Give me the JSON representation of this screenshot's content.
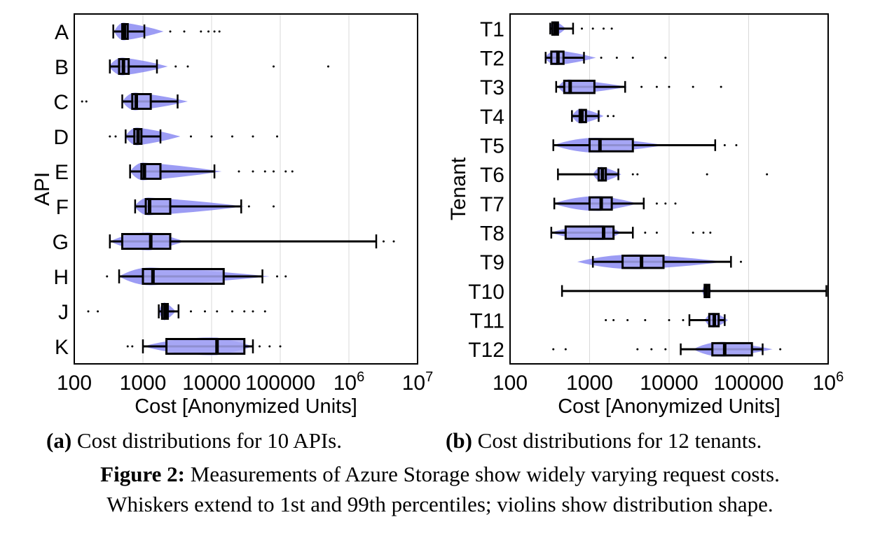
{
  "colors": {
    "violin": "#7b7bf0",
    "box_fill": "#a8a8f5",
    "line": "#000000",
    "grid": "#d9d9d9"
  },
  "chart_data": [
    {
      "type": "box-violin",
      "orientation": "horizontal",
      "xlabel": "Cost [Anonymized Units]",
      "ylabel": "API",
      "xscale": "log",
      "xlim": [
        100,
        10000000
      ],
      "xticks": [
        "100",
        "1000",
        "10000",
        "100000",
        "10^6",
        "10^7"
      ],
      "grid": "vertical",
      "categories": [
        "A",
        "B",
        "C",
        "D",
        "E",
        "F",
        "G",
        "H",
        "J",
        "K"
      ],
      "series": [
        {
          "label": "A",
          "p1": 370,
          "q1": 500,
          "median": 540,
          "q3": 600,
          "p99": 1050,
          "violin_min": 380,
          "violin_max": 2000,
          "outliers": [
            2500,
            4000,
            7000,
            9000,
            11000,
            13000
          ]
        },
        {
          "label": "B",
          "p1": 330,
          "q1": 450,
          "median": 520,
          "q3": 620,
          "p99": 1600,
          "violin_min": 320,
          "violin_max": 2300,
          "outliers": [
            3000,
            4500,
            80000,
            500000
          ]
        },
        {
          "label": "C",
          "p1": 500,
          "q1": 700,
          "median": 800,
          "q3": 1300,
          "p99": 3200,
          "violin_min": 500,
          "violin_max": 4500,
          "outliers": [
            130,
            150
          ]
        },
        {
          "label": "D",
          "p1": 560,
          "q1": 750,
          "median": 850,
          "q3": 950,
          "p99": 1800,
          "violin_min": 550,
          "violin_max": 3500,
          "outliers": [
            330,
            400,
            5000,
            10000,
            20000,
            40000,
            90000
          ]
        },
        {
          "label": "E",
          "p1": 650,
          "q1": 950,
          "median": 1050,
          "q3": 1800,
          "p99": 11000,
          "violin_min": 650,
          "violin_max": 14000,
          "outliers": [
            25000,
            40000,
            60000,
            80000,
            120000,
            150000
          ]
        },
        {
          "label": "F",
          "p1": 770,
          "q1": 1100,
          "median": 1250,
          "q3": 2500,
          "p99": 27000,
          "violin_min": 750,
          "violin_max": 30000,
          "outliers": [
            35000,
            80000
          ]
        },
        {
          "label": "G",
          "p1": 330,
          "q1": 500,
          "median": 1300,
          "q3": 2500,
          "p99": 2500000,
          "violin_min": 330,
          "violin_max": 4000,
          "outliers": [
            8000,
            15000,
            30000,
            70000,
            3200000,
            4500000
          ]
        },
        {
          "label": "H",
          "p1": 450,
          "q1": 1000,
          "median": 1400,
          "q3": 15000,
          "p99": 55000,
          "violin_min": 450,
          "violin_max": 70000,
          "outliers": [
            300,
            90000,
            120000
          ]
        },
        {
          "label": "J",
          "p1": 1700,
          "q1": 1900,
          "median": 2100,
          "q3": 2300,
          "p99": 3300,
          "violin_min": 1700,
          "violin_max": 3000,
          "outliers": [
            160,
            220,
            5000,
            8000,
            12000,
            20000,
            30000,
            40000,
            60000
          ]
        },
        {
          "label": "K",
          "p1": 1000,
          "q1": 2200,
          "median": 12000,
          "q3": 30000,
          "p99": 40000,
          "violin_min": 1000,
          "violin_max": 40000,
          "outliers": [
            600,
            700,
            50000,
            70000,
            100000
          ]
        }
      ]
    },
    {
      "type": "box-violin",
      "orientation": "horizontal",
      "xlabel": "Cost [Anonymized Units]",
      "ylabel": "Tenant",
      "xscale": "log",
      "xlim": [
        100,
        1000000
      ],
      "xticks": [
        "100",
        "1000",
        "10000",
        "100000",
        "10^6"
      ],
      "grid": "vertical",
      "categories": [
        "T1",
        "T2",
        "T3",
        "T4",
        "T5",
        "T6",
        "T7",
        "T8",
        "T9",
        "T10",
        "T11",
        "T12"
      ],
      "series": [
        {
          "label": "T1",
          "p1": 320,
          "q1": 340,
          "median": 370,
          "q3": 400,
          "p99": 620,
          "violin_min": 310,
          "violin_max": 500,
          "outliers": [
            800,
            1100,
            1500,
            1900
          ]
        },
        {
          "label": "T2",
          "p1": 280,
          "q1": 330,
          "median": 400,
          "q3": 470,
          "p99": 850,
          "violin_min": 270,
          "violin_max": 1200,
          "outliers": [
            1400,
            2200,
            3500,
            9000
          ]
        },
        {
          "label": "T3",
          "p1": 380,
          "q1": 480,
          "median": 570,
          "q3": 1150,
          "p99": 2800,
          "violin_min": 400,
          "violin_max": 3000,
          "outliers": [
            4500,
            7000,
            10000,
            20000,
            45000
          ]
        },
        {
          "label": "T4",
          "p1": 600,
          "q1": 750,
          "median": 800,
          "q3": 900,
          "p99": 1300,
          "violin_min": 600,
          "violin_max": 1500,
          "outliers": [
            1700,
            2000
          ]
        },
        {
          "label": "T5",
          "p1": 350,
          "q1": 1000,
          "median": 1350,
          "q3": 3500,
          "p99": 38000,
          "violin_min": 350,
          "violin_max": 9000,
          "outliers": [
            50000,
            70000
          ]
        },
        {
          "label": "T6",
          "p1": 400,
          "q1": 1300,
          "median": 1450,
          "q3": 1600,
          "p99": 2300,
          "violin_min": 1100,
          "violin_max": 2500,
          "outliers": [
            3500,
            4000,
            30000,
            170000
          ]
        },
        {
          "label": "T7",
          "p1": 360,
          "q1": 1000,
          "median": 1400,
          "q3": 1900,
          "p99": 4800,
          "violin_min": 350,
          "violin_max": 4000,
          "outliers": [
            7000,
            9000,
            12000
          ]
        },
        {
          "label": "T8",
          "p1": 330,
          "q1": 500,
          "median": 1500,
          "q3": 2000,
          "p99": 3500,
          "violin_min": 320,
          "violin_max": 2500,
          "outliers": [
            5000,
            7000,
            20000,
            27000,
            33000
          ]
        },
        {
          "label": "T9",
          "p1": 1100,
          "q1": 2600,
          "median": 4500,
          "q3": 8500,
          "p99": 60000,
          "violin_min": 700,
          "violin_max": 50000,
          "outliers": [
            80000
          ]
        },
        {
          "label": "T10",
          "p1": 450,
          "q1": 28000,
          "median": 29500,
          "q3": 32000,
          "p99": 950000,
          "violin_min": 26000,
          "violin_max": 34000,
          "outliers": []
        },
        {
          "label": "T11",
          "p1": 18000,
          "q1": 32000,
          "median": 37000,
          "q3": 42000,
          "p99": 50000,
          "violin_min": 28000,
          "violin_max": 55000,
          "outliers": [
            1600,
            2000,
            3000,
            5000,
            10000,
            15000
          ]
        },
        {
          "label": "T12",
          "p1": 14000,
          "q1": 35000,
          "median": 50000,
          "q3": 110000,
          "p99": 150000,
          "violin_min": 20000,
          "violin_max": 200000,
          "outliers": [
            350,
            500,
            4000,
            6000,
            9000,
            250000
          ]
        }
      ]
    }
  ],
  "captions": {
    "sub_a_tag": "(a)",
    "sub_a_text": " Cost distributions for 10 APIs.",
    "sub_b_tag": "(b)",
    "sub_b_text": " Cost distributions for 12 tenants.",
    "figure_tag": "Figure 2:",
    "figure_line1_rest": " Measurements of Azure Storage show widely varying request costs.",
    "figure_line2": "Whiskers extend to 1st and 99th percentiles; violins show distribution shape."
  }
}
